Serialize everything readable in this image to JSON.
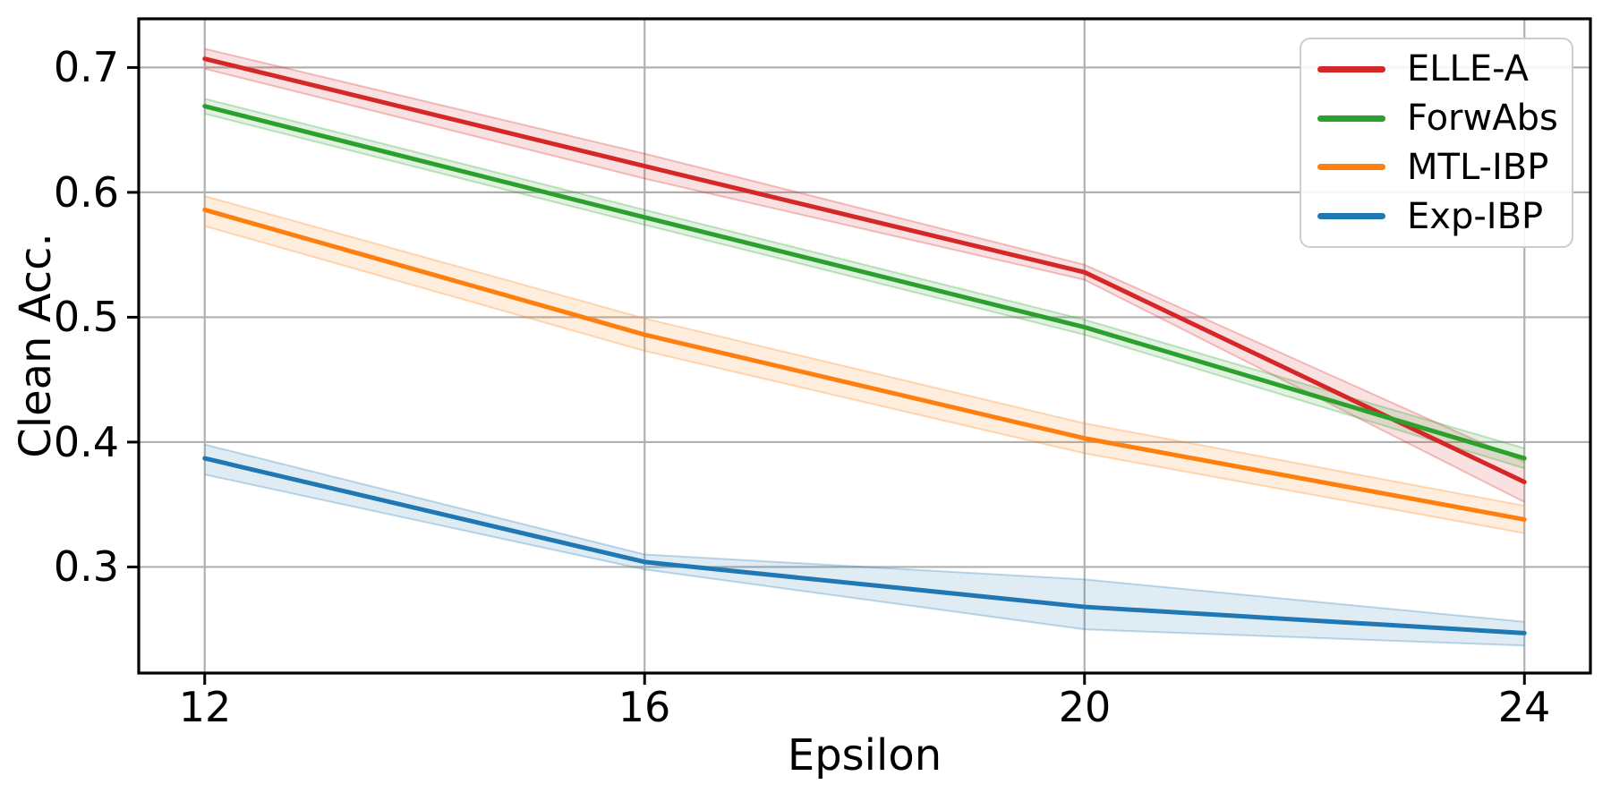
{
  "style": {
    "background": "#ffffff",
    "grid_color": "#b0b0b0",
    "spine_color": "#000000",
    "tick_color": "#000000",
    "legend_border_color": "#cccccc",
    "band_fill_opacity": 0.14,
    "band_edge_opacity": 0.28
  },
  "chart_data": {
    "type": "line",
    "title": "",
    "xlabel": "Epsilon",
    "ylabel": "Clean Acc.",
    "x": [
      12,
      16,
      20,
      24
    ],
    "xtick_labels": [
      "12",
      "16",
      "20",
      "24"
    ],
    "ytick_values": [
      0.3,
      0.4,
      0.5,
      0.6,
      0.7
    ],
    "ytick_labels": [
      "0.3",
      "0.4",
      "0.5",
      "0.6",
      "0.7"
    ],
    "xlim": [
      11.4,
      24.6
    ],
    "ylim": [
      0.215,
      0.739
    ],
    "grid": true,
    "legend_position": "upper right",
    "series": [
      {
        "name": "ELLE-A",
        "color": "#d62728",
        "values": [
          0.707,
          0.621,
          0.536,
          0.368
        ],
        "band_lower": [
          0.699,
          0.611,
          0.53,
          0.352
        ],
        "band_upper": [
          0.715,
          0.631,
          0.542,
          0.384
        ]
      },
      {
        "name": "ForwAbs",
        "color": "#2ca02c",
        "values": [
          0.669,
          0.58,
          0.492,
          0.387
        ],
        "band_lower": [
          0.663,
          0.574,
          0.486,
          0.379
        ],
        "band_upper": [
          0.675,
          0.586,
          0.498,
          0.395
        ]
      },
      {
        "name": "MTL-IBP",
        "color": "#ff7f0e",
        "values": [
          0.586,
          0.486,
          0.403,
          0.338
        ],
        "band_lower": [
          0.573,
          0.473,
          0.391,
          0.327
        ],
        "band_upper": [
          0.597,
          0.499,
          0.415,
          0.349
        ]
      },
      {
        "name": "Exp-IBP",
        "color": "#1f77b4",
        "values": [
          0.387,
          0.304,
          0.268,
          0.247
        ],
        "band_lower": [
          0.374,
          0.298,
          0.25,
          0.237
        ],
        "band_upper": [
          0.398,
          0.31,
          0.29,
          0.256
        ]
      }
    ]
  }
}
